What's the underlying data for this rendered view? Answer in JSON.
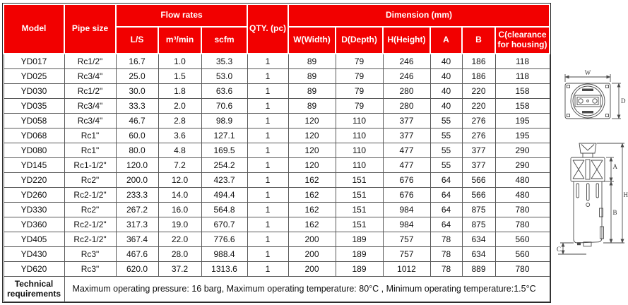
{
  "table": {
    "header": {
      "model": "Model",
      "pipe_size": "Pipe size",
      "flow_rates": "Flow rates",
      "flow_subcols": [
        "L/S",
        "m³/min",
        "scfm"
      ],
      "qty": "QTY. (pc)",
      "dimension": "Dimension (mm)",
      "dim_subcols": [
        "W(Width)",
        "D(Depth)",
        "H(Height)",
        "A",
        "B",
        "C(clearance for housing)"
      ]
    },
    "rows": [
      [
        "YD017",
        "Rc1/2\"",
        "16.7",
        "1.0",
        "35.3",
        "1",
        "89",
        "79",
        "246",
        "40",
        "186",
        "118"
      ],
      [
        "YD025",
        "Rc3/4\"",
        "25.0",
        "1.5",
        "53.0",
        "1",
        "89",
        "79",
        "246",
        "40",
        "186",
        "118"
      ],
      [
        "YD030",
        "Rc1/2\"",
        "30.0",
        "1.8",
        "63.6",
        "1",
        "89",
        "79",
        "280",
        "40",
        "220",
        "158"
      ],
      [
        "YD035",
        "Rc3/4\"",
        "33.3",
        "2.0",
        "70.6",
        "1",
        "89",
        "79",
        "280",
        "40",
        "220",
        "158"
      ],
      [
        "YD058",
        "Rc3/4\"",
        "46.7",
        "2.8",
        "98.9",
        "1",
        "120",
        "110",
        "377",
        "55",
        "276",
        "195"
      ],
      [
        "YD068",
        "Rc1\"",
        "60.0",
        "3.6",
        "127.1",
        "1",
        "120",
        "110",
        "377",
        "55",
        "276",
        "195"
      ],
      [
        "YD080",
        "Rc1\"",
        "80.0",
        "4.8",
        "169.5",
        "1",
        "120",
        "110",
        "477",
        "55",
        "377",
        "290"
      ],
      [
        "YD145",
        "Rc1-1/2\"",
        "120.0",
        "7.2",
        "254.2",
        "1",
        "120",
        "110",
        "477",
        "55",
        "377",
        "290"
      ],
      [
        "YD220",
        "Rc2\"",
        "200.0",
        "12.0",
        "423.7",
        "1",
        "162",
        "151",
        "676",
        "64",
        "566",
        "480"
      ],
      [
        "YD260",
        "Rc2-1/2\"",
        "233.3",
        "14.0",
        "494.4",
        "1",
        "162",
        "151",
        "676",
        "64",
        "566",
        "480"
      ],
      [
        "YD330",
        "Rc2\"",
        "267.2",
        "16.0",
        "564.8",
        "1",
        "162",
        "151",
        "984",
        "64",
        "875",
        "780"
      ],
      [
        "YD360",
        "Rc2-1/2\"",
        "317.3",
        "19.0",
        "670.7",
        "1",
        "162",
        "151",
        "984",
        "64",
        "875",
        "780"
      ],
      [
        "YD405",
        "Rc2-1/2\"",
        "367.4",
        "22.0",
        "776.6",
        "1",
        "200",
        "189",
        "757",
        "78",
        "634",
        "560"
      ],
      [
        "YD430",
        "Rc3\"",
        "467.6",
        "28.0",
        "988.4",
        "1",
        "200",
        "189",
        "757",
        "78",
        "634",
        "560"
      ],
      [
        "YD620",
        "Rc3\"",
        "620.0",
        "37.2",
        "1313.6",
        "1",
        "200",
        "189",
        "1012",
        "78",
        "889",
        "780"
      ]
    ],
    "tech_label": "Technical requirements",
    "tech_text": "Maximum operating pressure: 16 barg,  Maximum operating temperature: 80°C , Minimum operating temperature:1.5°C"
  },
  "diagram": {
    "labels": {
      "w": "W",
      "d": "D",
      "a": "A",
      "b": "B",
      "h": "H",
      "c": "C"
    }
  },
  "colors": {
    "header_bg": "#f20000",
    "header_text": "#ffffff",
    "grid": "#585858",
    "text": "#101010"
  }
}
